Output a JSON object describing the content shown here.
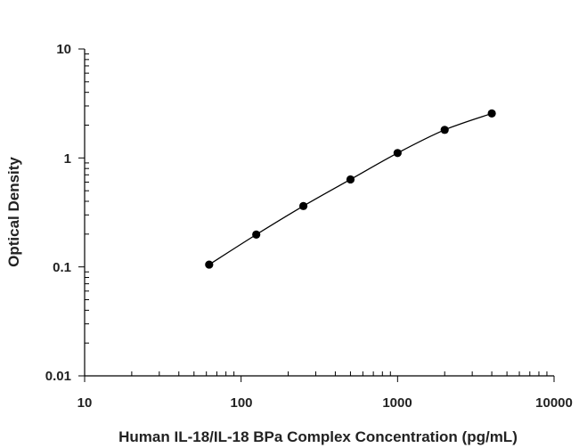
{
  "chart_data": {
    "type": "scatter",
    "xlabel": "Human IL-18/IL-18 BPa Complex Concentration (pg/mL)",
    "ylabel": "Optical Density",
    "x_scale": "log",
    "y_scale": "log",
    "xlim": [
      10,
      10000
    ],
    "ylim": [
      0.01,
      10
    ],
    "x_ticks": [
      "10",
      "100",
      "1000",
      "10000"
    ],
    "y_ticks": [
      "10",
      "1",
      "0.1",
      "0.01"
    ],
    "grid": false,
    "curve": "fitted line through points",
    "series": [
      {
        "x": [
          62.5,
          125,
          250,
          500,
          1000,
          2000,
          4000
        ],
        "y": [
          0.105,
          0.198,
          0.362,
          0.635,
          1.11,
          1.81,
          2.56
        ]
      }
    ],
    "colors": {
      "points": "#000000",
      "line": "#000000",
      "axis": "#000000"
    }
  }
}
